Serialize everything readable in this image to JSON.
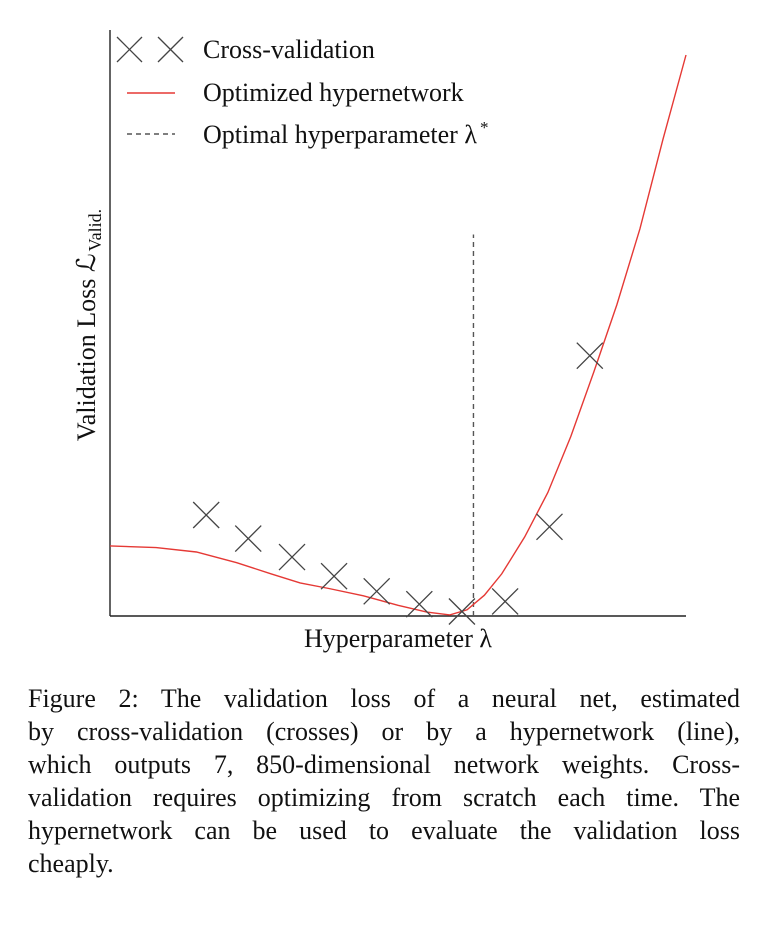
{
  "chart_data": {
    "type": "line",
    "xlabel": "Hyperparameter λ",
    "ylabel_main": "Validation Loss ℒ",
    "ylabel_sub": "Valid.",
    "axes": "left-and-bottom only, no ticks, no grid",
    "xlim": [
      0,
      1
    ],
    "ylim": [
      0,
      1
    ],
    "legend": {
      "placement": "top-left",
      "entries": [
        {
          "label": "Cross-validation",
          "marker": "x-cross",
          "color": "#444444"
        },
        {
          "label": "Optimized hypernetwork",
          "marker": "line",
          "color": "#e53935"
        },
        {
          "label": "Optimal hyperparameter λ",
          "superscript": "*",
          "marker": "dashed-line",
          "color": "#555555"
        }
      ]
    },
    "series": [
      {
        "name": "Cross-validation",
        "kind": "markers",
        "x": [
          0.167,
          0.24,
          0.316,
          0.389,
          0.463,
          0.537,
          0.611,
          0.686,
          0.763,
          0.833
        ],
        "y": [
          0.18,
          0.138,
          0.105,
          0.071,
          0.044,
          0.021,
          0.008,
          0.026,
          0.159,
          0.464
        ]
      },
      {
        "name": "Optimized hypernetwork",
        "kind": "line",
        "x": [
          0.0,
          0.08,
          0.15,
          0.22,
          0.28,
          0.33,
          0.38,
          0.44,
          0.5,
          0.55,
          0.59,
          0.62,
          0.65,
          0.68,
          0.72,
          0.76,
          0.8,
          0.84,
          0.88,
          0.92,
          0.96,
          1.0
        ],
        "y": [
          0.125,
          0.122,
          0.114,
          0.095,
          0.075,
          0.059,
          0.049,
          0.036,
          0.019,
          0.007,
          0.002,
          0.011,
          0.037,
          0.075,
          0.141,
          0.22,
          0.32,
          0.435,
          0.555,
          0.69,
          0.85,
          1.0
        ]
      }
    ],
    "optimal_lambda": {
      "x": 0.631,
      "y_top": 0.68,
      "color": "#555555"
    }
  },
  "caption": {
    "lines": [
      "Figure 2: The validation loss of a neural net, estimated",
      "by cross-validation (crosses) or by a hypernetwork (line),",
      "which outputs 7, 850-dimensional network weights. Cross-",
      "validation requires optimizing from scratch each time. The",
      "hypernetwork can be used to evaluate the validation loss",
      "cheaply."
    ]
  }
}
